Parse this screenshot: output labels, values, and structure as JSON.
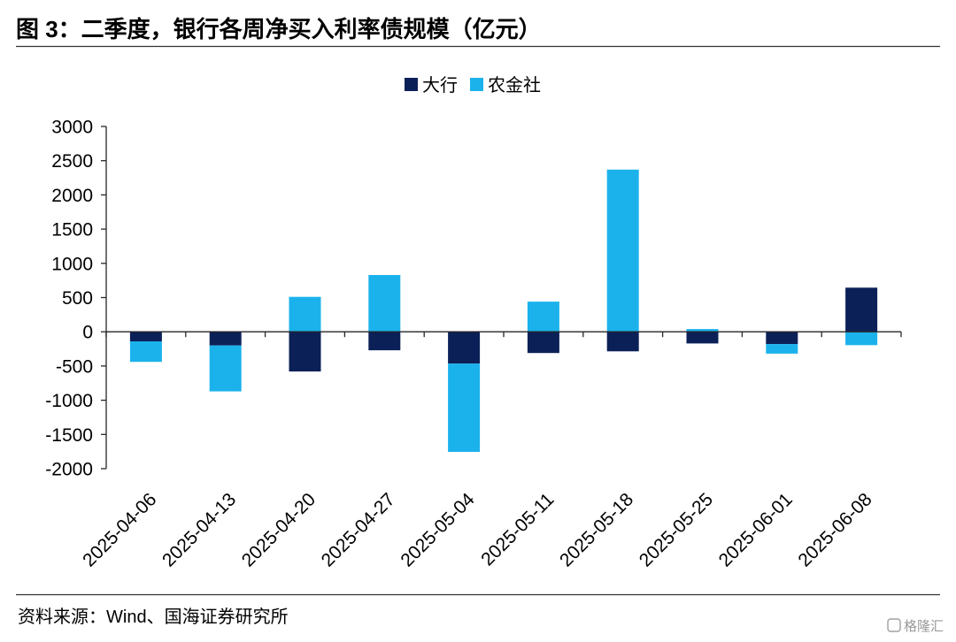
{
  "title": "图 3：二季度，银行各周净买入利率债规模（亿元）",
  "source": "资料来源：Wind、国海证券研究所",
  "watermark": "格隆汇",
  "chart_data": {
    "type": "bar",
    "stacked": true,
    "title": "图 3：二季度，银行各周净买入利率债规模（亿元）",
    "xlabel": "",
    "ylabel": "",
    "unit": "亿元",
    "categories": [
      "2025-04-06",
      "2025-04-13",
      "2025-04-20",
      "2025-04-27",
      "2025-05-04",
      "2025-05-11",
      "2025-05-18",
      "2025-05-25",
      "2025-06-01",
      "2025-06-08"
    ],
    "series": [
      {
        "name": "大行",
        "color": "#0c2058",
        "values": [
          -140,
          -200,
          -580,
          -270,
          -465,
          -310,
          -285,
          -170,
          -180,
          645
        ]
      },
      {
        "name": "农金社",
        "color": "#1bb2ec",
        "values": [
          -300,
          -670,
          510,
          830,
          -1290,
          440,
          2370,
          40,
          -140,
          -195
        ]
      }
    ],
    "ylim": [
      -2000,
      3000
    ],
    "yticks": [
      3000,
      2500,
      2000,
      1500,
      1000,
      500,
      0,
      -500,
      -1000,
      -1500,
      -2000
    ],
    "legend": "top-center",
    "grid": false
  }
}
